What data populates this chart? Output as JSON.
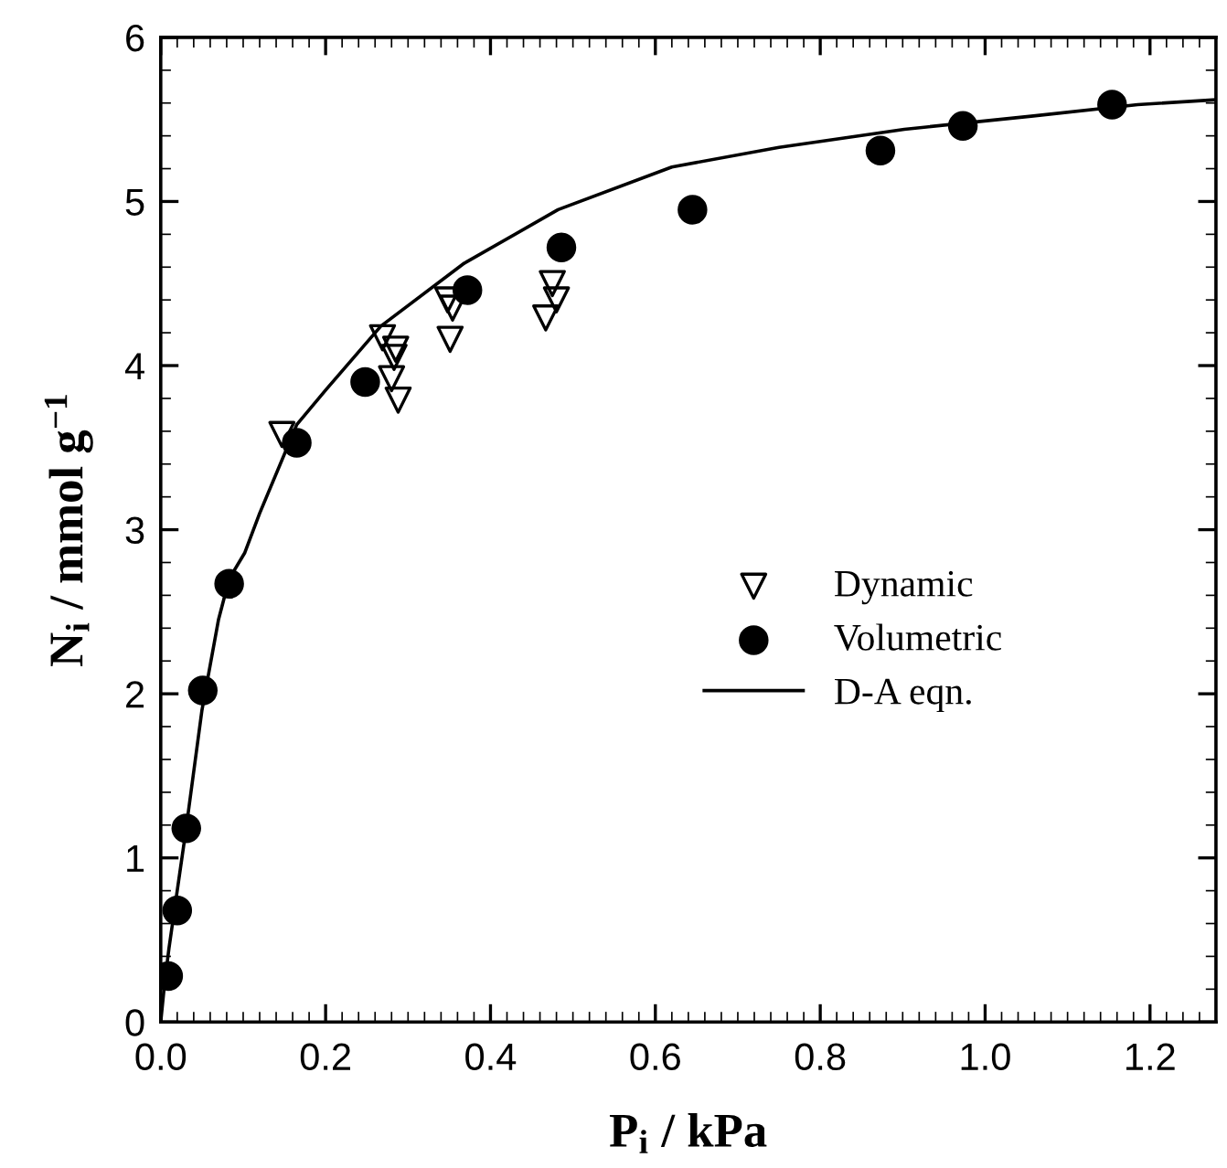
{
  "chart_data": {
    "type": "scatter",
    "xlabel": "P$_{i}$ / kPa",
    "ylabel": "N$_{i}$ / mmol g$^{−1}$",
    "xlim": [
      0,
      1.28
    ],
    "ylim": [
      0,
      6
    ],
    "xticks": [
      {
        "value": 0,
        "label": "0.0"
      },
      0.2,
      0.4,
      0.6,
      0.8,
      {
        "value": 1.0,
        "label": "1.0"
      },
      1.2
    ],
    "yticks": [
      0,
      1,
      2,
      3,
      4,
      5,
      6
    ],
    "grid": false,
    "legend": "bottom right",
    "series": [
      {
        "name": "Dynamic",
        "marker": "triangle",
        "color": "#000000",
        "x": [
          0.147,
          0.269,
          0.285,
          0.283,
          0.28,
          0.288,
          0.348,
          0.354,
          0.351,
          0.475,
          0.48,
          0.467
        ],
        "values": [
          3.58,
          4.17,
          4.1,
          4.05,
          3.92,
          3.79,
          4.4,
          4.35,
          4.16,
          4.5,
          4.4,
          4.29
        ]
      },
      {
        "name": "Volumetric",
        "marker": "circle",
        "color": "#000000",
        "x": [
          0.009,
          0.02,
          0.031,
          0.051,
          0.083,
          0.165,
          0.248,
          0.372,
          0.486,
          0.645,
          0.873,
          0.973,
          1.154
        ],
        "values": [
          0.28,
          0.68,
          1.18,
          2.02,
          2.67,
          3.53,
          3.9,
          4.46,
          4.72,
          4.95,
          5.31,
          5.46,
          5.59
        ]
      },
      {
        "name": "D-A eqn.",
        "type": "line",
        "marker": "none",
        "line_style": "solid",
        "color": "#000000",
        "x": [
          0,
          0.005,
          0.01,
          0.02,
          0.03,
          0.05,
          0.07,
          0.083,
          0.102,
          0.12,
          0.165,
          0.2,
          0.267,
          0.367,
          0.482,
          0.62,
          0.75,
          0.902,
          1.056,
          1.185,
          1.28
        ],
        "values": [
          0,
          0.25,
          0.45,
          0.8,
          1.15,
          1.9,
          2.45,
          2.7,
          2.86,
          3.1,
          3.64,
          3.85,
          4.24,
          4.62,
          4.95,
          5.21,
          5.33,
          5.44,
          5.52,
          5.59,
          5.62
        ]
      }
    ]
  }
}
